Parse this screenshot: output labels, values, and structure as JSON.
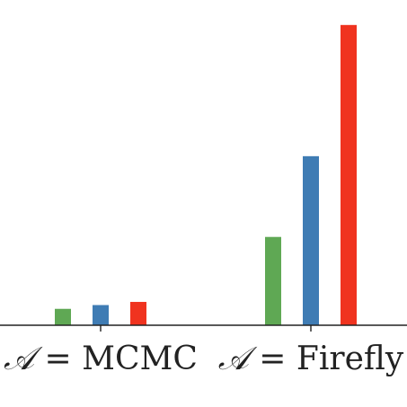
{
  "chart_data": {
    "type": "bar",
    "categories": [
      {
        "prefix": "𝒜",
        "eq": " = ",
        "name": "MCMC"
      },
      {
        "prefix": "𝒜",
        "eq": " = ",
        "name": "Firefly"
      }
    ],
    "series": [
      {
        "color": "#5fa854",
        "values": [
          2.6,
          14.0
        ]
      },
      {
        "color": "#3f7cb4",
        "values": [
          3.2,
          26.8
        ]
      },
      {
        "color": "#f0331f",
        "values": [
          3.7,
          47.6
        ]
      }
    ],
    "ylim": [
      0,
      48
    ],
    "title": "",
    "xlabel": "",
    "ylabel": "",
    "grid": false
  }
}
